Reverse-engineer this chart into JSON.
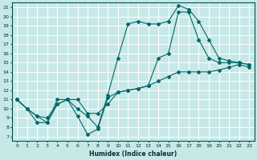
{
  "xlabel": "Humidex (Indice chaleur)",
  "bg_color": "#c8e8e8",
  "grid_color": "#ffffff",
  "line_color": "#006868",
  "xlim": [
    -0.5,
    23.5
  ],
  "ylim": [
    6.5,
    21.5
  ],
  "xticks": [
    0,
    1,
    2,
    3,
    4,
    5,
    6,
    7,
    8,
    9,
    10,
    11,
    12,
    13,
    14,
    15,
    16,
    17,
    18,
    19,
    20,
    21,
    22,
    23
  ],
  "yticks": [
    7,
    8,
    9,
    10,
    11,
    12,
    13,
    14,
    15,
    16,
    17,
    18,
    19,
    20,
    21
  ],
  "line1_x": [
    0,
    1,
    2,
    3,
    4,
    5,
    6,
    7,
    8,
    9,
    10,
    11,
    12,
    13,
    14,
    15,
    16,
    17,
    18,
    19,
    20,
    21,
    22,
    23
  ],
  "line1_y": [
    11,
    10,
    9.2,
    8.5,
    11,
    11,
    9.2,
    7.2,
    7.8,
    11.2,
    11.8,
    12,
    12.2,
    12.5,
    13,
    13.5,
    14,
    14,
    14,
    14,
    14.2,
    14.5,
    14.8,
    14.5
  ],
  "line2_x": [
    0,
    1,
    2,
    3,
    4,
    5,
    6,
    7,
    8,
    9,
    10,
    11,
    12,
    13,
    14,
    15,
    16,
    17,
    18,
    19,
    20,
    21,
    22,
    23
  ],
  "line2_y": [
    11,
    10,
    8.5,
    8.5,
    10.5,
    11,
    10,
    9.2,
    8,
    11.5,
    15.5,
    19.2,
    19.5,
    19.2,
    19.2,
    19.5,
    21.2,
    20.8,
    19.5,
    17.5,
    15.5,
    15.2,
    15,
    14.8
  ],
  "line3_x": [
    0,
    1,
    2,
    3,
    4,
    5,
    6,
    7,
    8,
    9,
    10,
    11,
    12,
    13,
    14,
    15,
    16,
    17,
    18,
    19,
    20,
    21,
    22,
    23
  ],
  "line3_y": [
    11,
    10,
    9.2,
    9,
    10.5,
    11,
    11,
    9.5,
    9.5,
    10.5,
    11.8,
    12,
    12.2,
    12.5,
    15.5,
    16,
    20.5,
    20.5,
    17.5,
    15.5,
    15,
    15,
    15,
    14.8
  ]
}
